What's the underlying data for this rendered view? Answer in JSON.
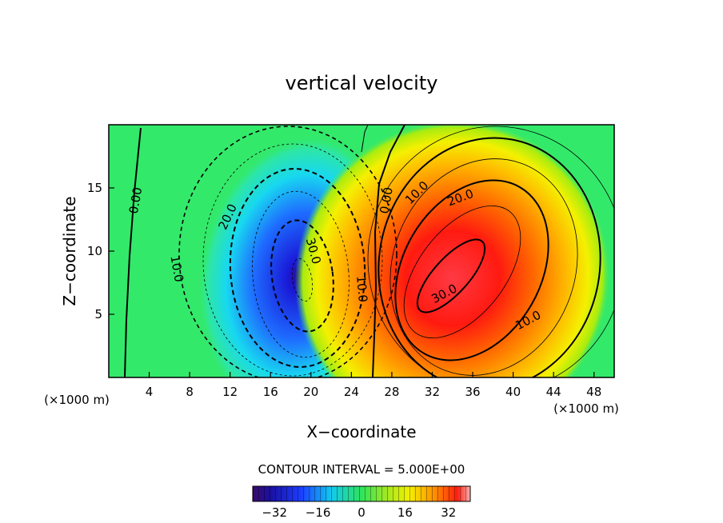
{
  "chart_data": {
    "type": "contour",
    "title": "vertical velocity",
    "xlabel": "X−coordinate",
    "ylabel": "Z−coordinate",
    "x_unit_left": "(×1000 m)",
    "x_unit_right": "(×1000 m)",
    "xlim": [
      0,
      50
    ],
    "ylim": [
      0,
      20
    ],
    "x_ticks": [
      4,
      8,
      12,
      16,
      20,
      24,
      28,
      32,
      36,
      40,
      44,
      48
    ],
    "y_ticks": [
      5,
      10,
      15
    ],
    "contour_interval_label": "CONTOUR INTERVAL = 5.000E+00",
    "contour_interval": 5.0,
    "colorbar": {
      "min": -40,
      "max": 40,
      "ticks": [
        -32,
        -16,
        0,
        16,
        32
      ],
      "tick_labels": [
        "−32",
        "−16",
        "0",
        "16",
        "32"
      ]
    },
    "features": [
      {
        "name": "downdraft",
        "x_center": 18.9,
        "z_center": 7.8,
        "min_value": -36
      },
      {
        "name": "updraft",
        "x_center": 34.5,
        "z_center": 8.0,
        "max_value": 34
      }
    ],
    "contour_labels": [
      {
        "text": "0.00",
        "x": 2.7,
        "z": 14.0,
        "angle": -80
      },
      {
        "text": "10.0",
        "x": 6.7,
        "z": 8.6,
        "angle": 80
      },
      {
        "text": "20.0",
        "x": 11.8,
        "z": 12.7,
        "angle": -65
      },
      {
        "text": "30.0",
        "x": 20.2,
        "z": 10.0,
        "angle": 75
      },
      {
        "text": "10.0",
        "x": 25.0,
        "z": 7.0,
        "angle": 85
      },
      {
        "text": "0.00",
        "x": 27.5,
        "z": 14.0,
        "angle": -80
      },
      {
        "text": "10.0",
        "x": 30.5,
        "z": 14.6,
        "angle": -45
      },
      {
        "text": "20.0",
        "x": 34.8,
        "z": 14.2,
        "angle": -20
      },
      {
        "text": "30.0",
        "x": 33.2,
        "z": 6.6,
        "angle": -28
      },
      {
        "text": "10.0",
        "x": 41.5,
        "z": 4.5,
        "angle": -28
      }
    ]
  }
}
